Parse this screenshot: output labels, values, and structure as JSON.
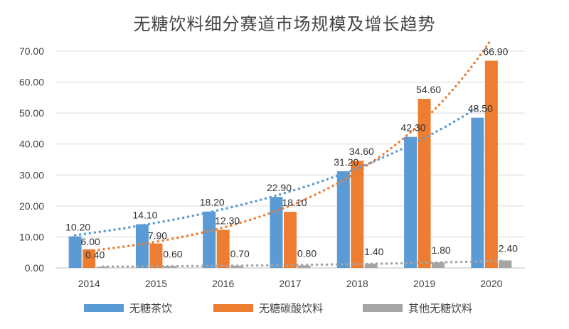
{
  "chart_data": {
    "type": "bar",
    "title": "无糖饮料细分赛道市场规模及增长趋势",
    "categories": [
      "2014",
      "2015",
      "2016",
      "2017",
      "2018",
      "2019",
      "2020"
    ],
    "ylim": [
      0,
      70
    ],
    "yticks": [
      "0.00",
      "10.00",
      "20.00",
      "30.00",
      "40.00",
      "50.00",
      "60.00",
      "70.00"
    ],
    "grid": true,
    "legend_position": "bottom",
    "trendlines": "dotted",
    "series": [
      {
        "name": "无糖茶饮",
        "color": "#5b9bd5",
        "values": [
          10.2,
          14.1,
          18.2,
          22.9,
          31.2,
          42.3,
          48.5
        ],
        "labels": [
          "10.20",
          "14.10",
          "18.20",
          "22.90",
          "31.20",
          "42.30",
          "48.50"
        ]
      },
      {
        "name": "无糖碳酸饮料",
        "color": "#ed7d31",
        "values": [
          6.0,
          7.9,
          12.3,
          18.1,
          34.6,
          54.6,
          66.9
        ],
        "labels": [
          "6.00",
          "7.90",
          "12.30",
          "18.10",
          "34.60",
          "54.60",
          "66.90"
        ]
      },
      {
        "name": "其他无糖饮料",
        "color": "#a5a5a5",
        "values": [
          0.4,
          0.6,
          0.7,
          0.8,
          1.4,
          1.8,
          2.4
        ],
        "labels": [
          "0.40",
          "0.60",
          "0.70",
          "0.80",
          "1.40",
          "1.80",
          "2.40"
        ]
      }
    ]
  }
}
